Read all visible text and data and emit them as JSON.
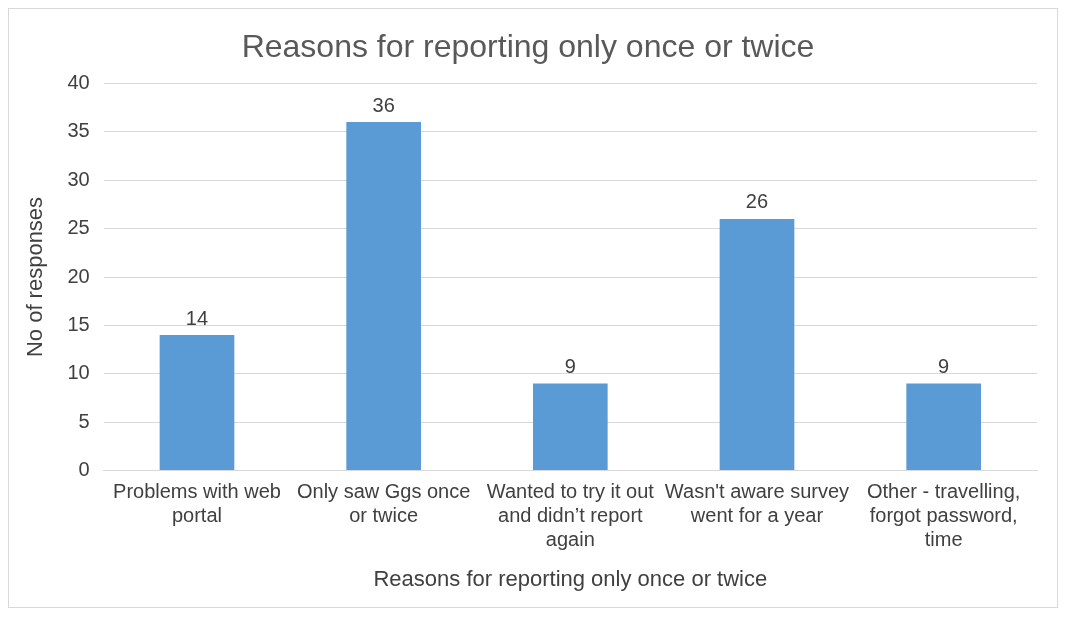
{
  "chart_data": {
    "type": "bar",
    "title": "Reasons for reporting only once or twice",
    "xlabel": "Reasons for reporting only once or twice",
    "ylabel": "No of responses",
    "categories": [
      "Problems with web portal",
      "Only saw Ggs once or twice",
      "Wanted to try it out and didn’t report again",
      "Wasn't aware survey went for a year",
      "Other - travelling, forgot password, time"
    ],
    "values": [
      14,
      36,
      9,
      26,
      9
    ],
    "color": "#5b9bd5",
    "ylim": [
      0,
      40
    ],
    "yticks": [
      0,
      5,
      10,
      15,
      20,
      25,
      30,
      35,
      40
    ],
    "grid": "y",
    "data_labels": true,
    "legend": false
  }
}
